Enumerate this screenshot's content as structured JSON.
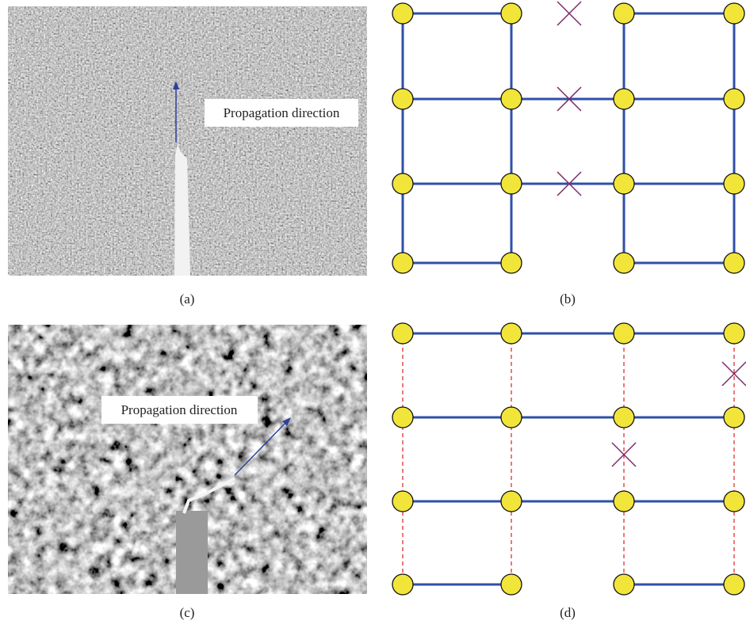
{
  "panels": [
    {
      "label": "(a)",
      "annotation": "Propagation direction"
    },
    {
      "label": "(b)"
    },
    {
      "label": "(c)",
      "annotation": "Propagation direction"
    },
    {
      "label": "(d)"
    }
  ]
}
